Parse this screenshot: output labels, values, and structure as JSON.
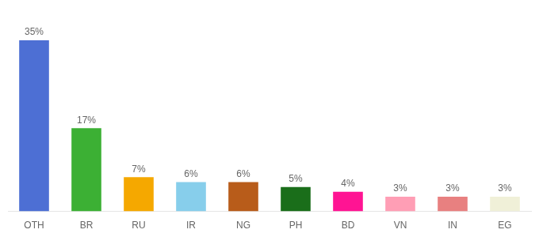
{
  "chart_data": {
    "type": "bar",
    "categories": [
      "OTH",
      "BR",
      "RU",
      "IR",
      "NG",
      "PH",
      "BD",
      "VN",
      "IN",
      "EG"
    ],
    "values": [
      35,
      17,
      7,
      6,
      6,
      5,
      4,
      3,
      3,
      3
    ],
    "value_labels": [
      "35%",
      "17%",
      "7%",
      "6%",
      "6%",
      "5%",
      "4%",
      "3%",
      "3%",
      "3%"
    ],
    "colors": [
      "#4d6fd4",
      "#3cb034",
      "#f5a800",
      "#87ceeb",
      "#b85c1a",
      "#1a6e1a",
      "#ff1493",
      "#ff9eb5",
      "#e88080",
      "#f0f0d8"
    ],
    "ylim": [
      0,
      40
    ],
    "grid": false,
    "data_labels": true,
    "tick_labels": "x"
  }
}
